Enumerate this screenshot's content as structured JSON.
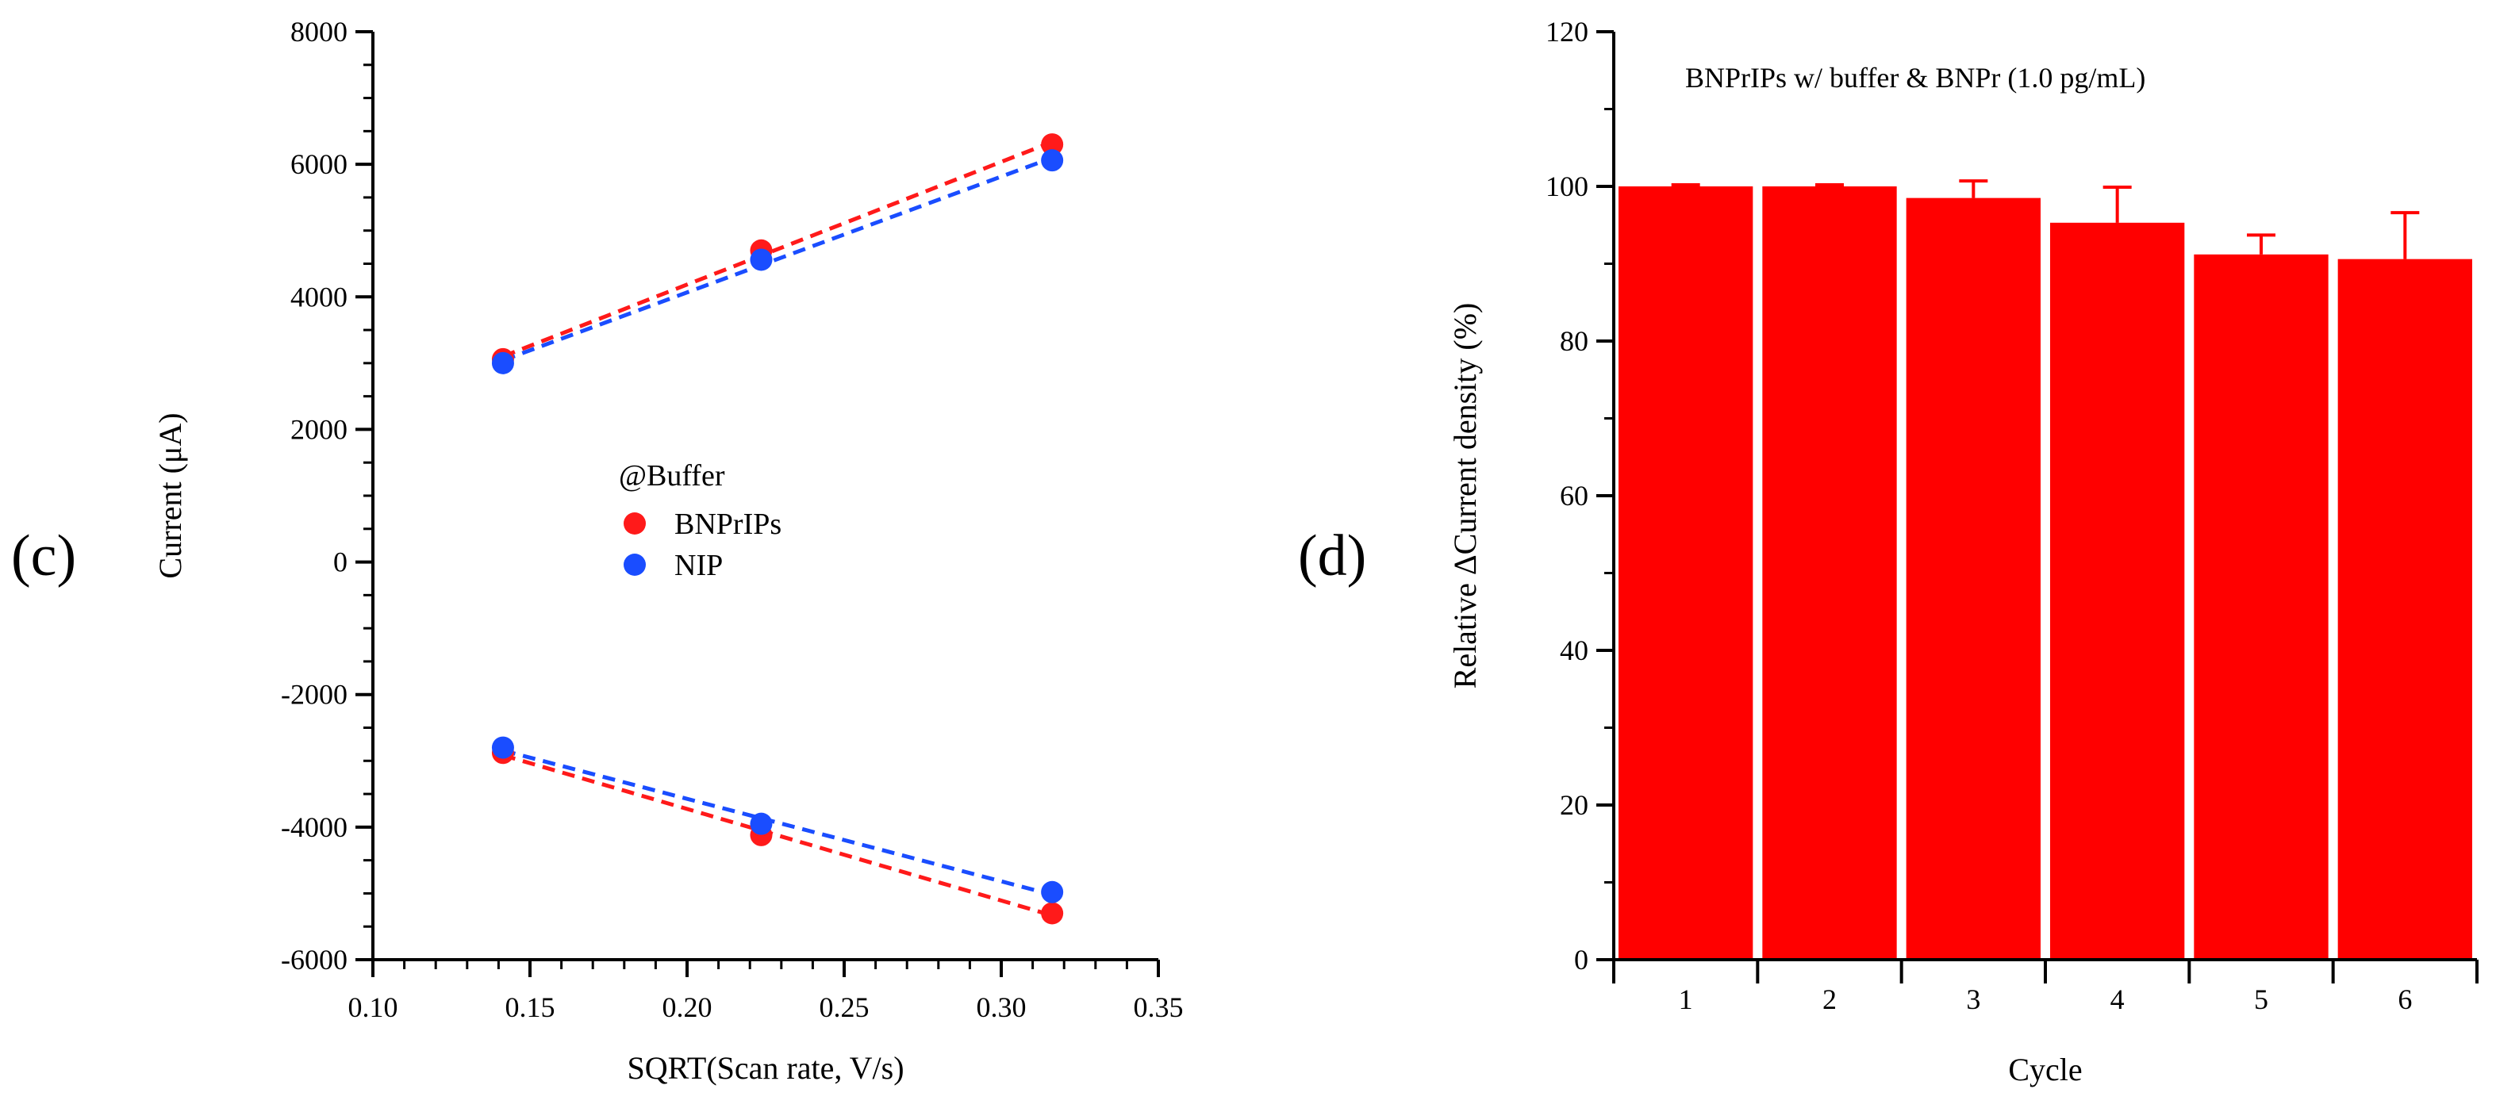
{
  "chart_data": [
    {
      "type": "scatter",
      "panel_label": "(c)",
      "xlabel": "SQRT(Scan rate, V/s)",
      "ylabel": "Current (μA)",
      "xlim": [
        0.1,
        0.35
      ],
      "ylim": [
        -6000,
        8000
      ],
      "x_ticks": [
        "0.10",
        "0.15",
        "0.20",
        "0.25",
        "0.30",
        "0.35"
      ],
      "y_ticks": [
        "-6000",
        "-4000",
        "-2000",
        "0",
        "2000",
        "4000",
        "6000",
        "8000"
      ],
      "legend": {
        "title": "@Buffer",
        "position": "center"
      },
      "series": [
        {
          "name": "BNPrIPs",
          "color": "#ff1a1a",
          "branch": "anodic",
          "x": [
            0.1414,
            0.2236,
            0.3162
          ],
          "y": [
            3060,
            4700,
            6300
          ],
          "fit": "dashed"
        },
        {
          "name": "NIP",
          "color": "#1a4dff",
          "branch": "anodic",
          "x": [
            0.1414,
            0.2236,
            0.3162
          ],
          "y": [
            3000,
            4560,
            6060
          ],
          "fit": "dashed"
        },
        {
          "name": "BNPrIPs",
          "color": "#ff1a1a",
          "branch": "cathodic",
          "x": [
            0.1414,
            0.2236,
            0.3162
          ],
          "y": [
            -2880,
            -4120,
            -5300
          ],
          "fit": "dashed"
        },
        {
          "name": "NIP",
          "color": "#1a4dff",
          "branch": "cathodic",
          "x": [
            0.1414,
            0.2236,
            0.3162
          ],
          "y": [
            -2800,
            -3950,
            -4980
          ],
          "fit": "dashed"
        }
      ]
    },
    {
      "type": "bar",
      "panel_label": "(d)",
      "title": "BNPrIPs w/ buffer & BNPr (1.0 pg/mL)",
      "xlabel": "Cycle",
      "ylabel": "Relative ΔCurrent density (%)",
      "categories": [
        "1",
        "2",
        "3",
        "4",
        "5",
        "6"
      ],
      "values": [
        100,
        100,
        98.5,
        95.3,
        91.2,
        90.6
      ],
      "error_plus": [
        0.2,
        0.2,
        2.2,
        4.6,
        2.5,
        6.0
      ],
      "color": "#ff0000",
      "ylim": [
        0,
        120
      ],
      "y_ticks": [
        "0",
        "20",
        "40",
        "60",
        "80",
        "100",
        "120"
      ]
    }
  ]
}
